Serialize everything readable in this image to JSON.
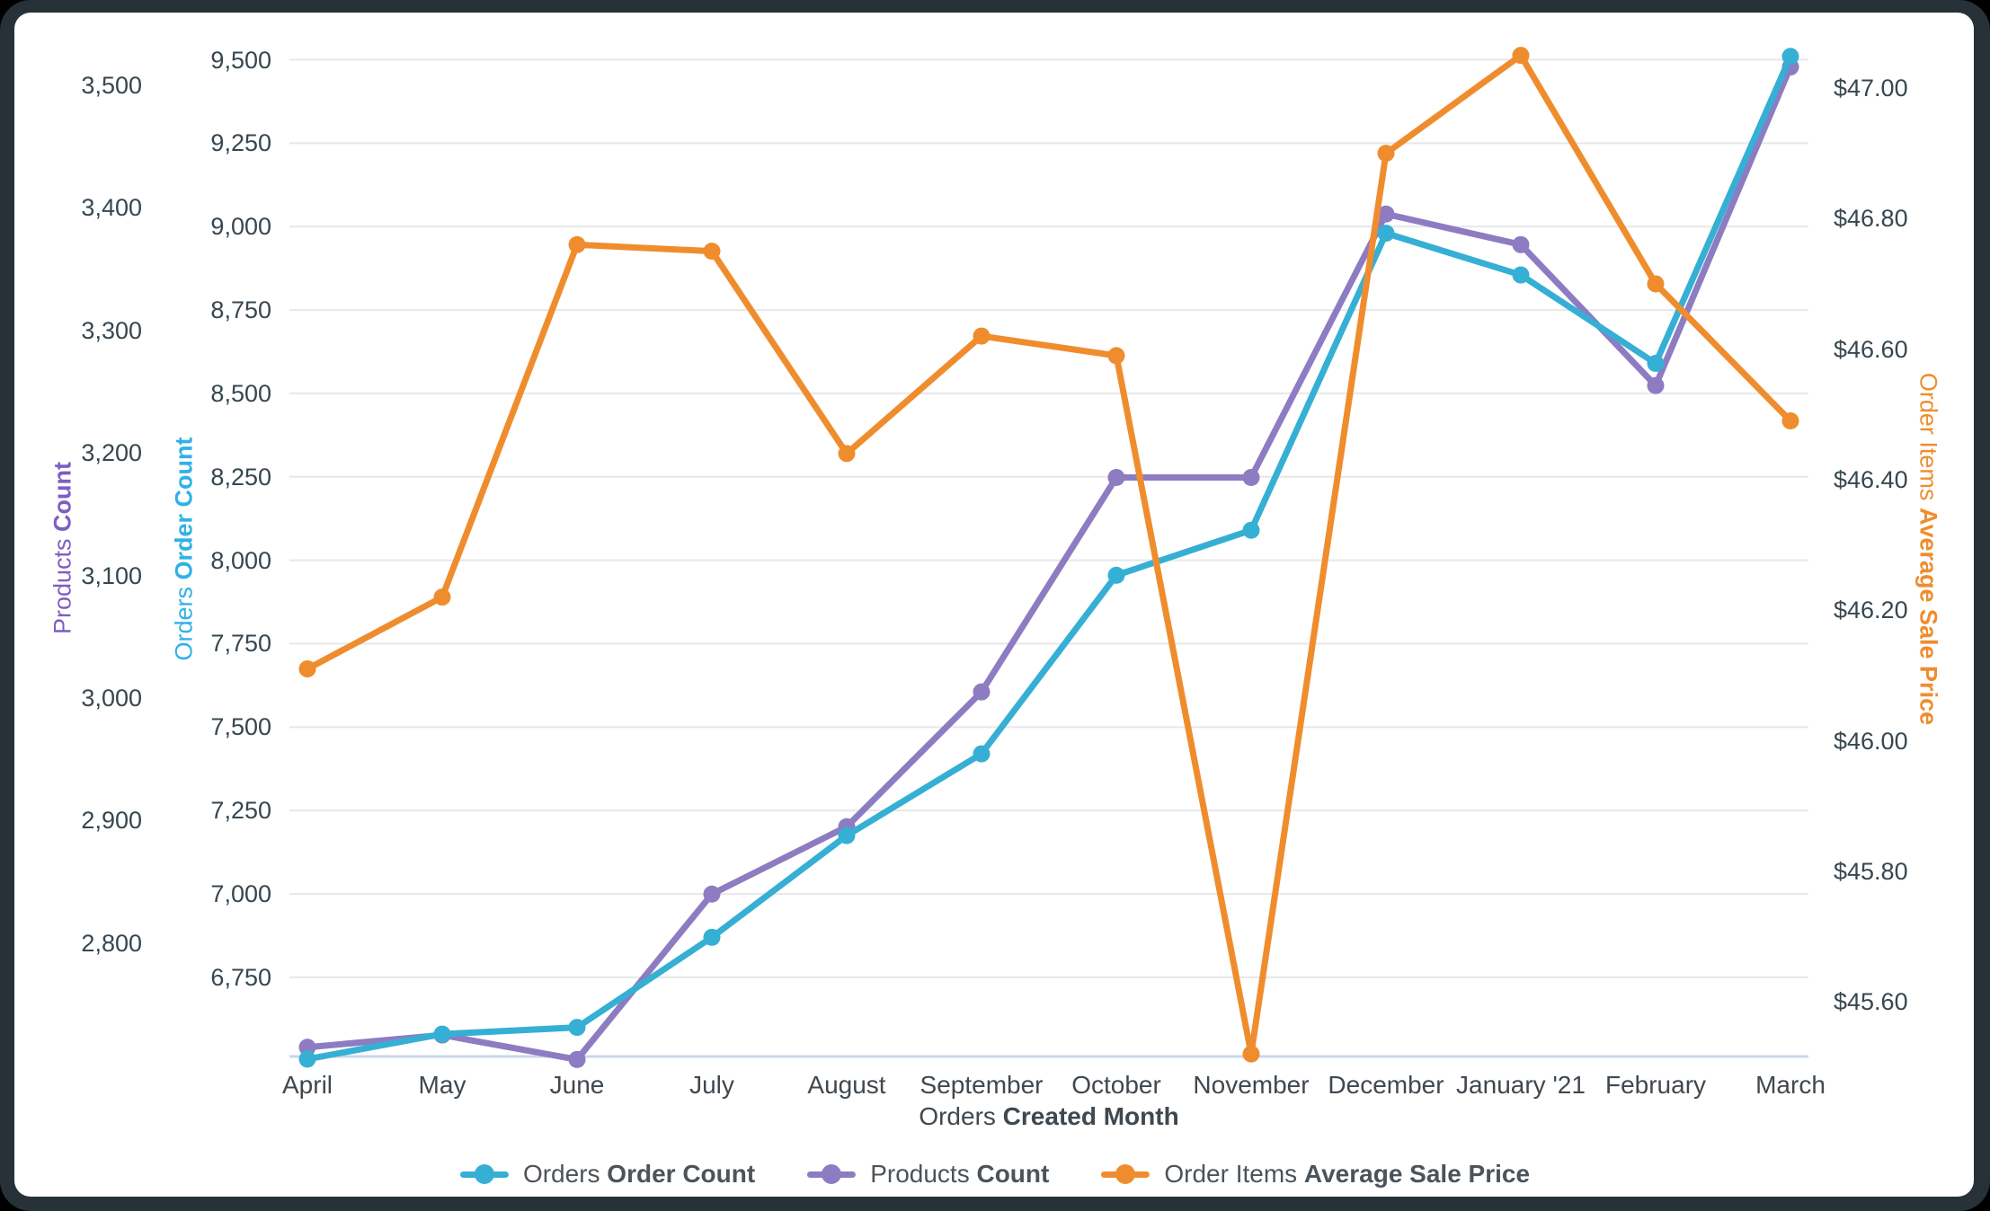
{
  "chart_data": {
    "type": "line",
    "categories": [
      "April",
      "May",
      "June",
      "July",
      "August",
      "September",
      "October",
      "November",
      "December",
      "January '21",
      "February",
      "March"
    ],
    "x_axis": {
      "title_view": "Orders",
      "title_field": "Created Month"
    },
    "axes": {
      "products": {
        "title_view": "Products",
        "title_field": "Count",
        "color": "#7C5EC5",
        "tick_labels": [
          "3,500",
          "3,400",
          "3,300",
          "3,200",
          "3,100",
          "3,000",
          "2,900",
          "2,800"
        ],
        "tick_values": [
          3500,
          3400,
          3300,
          3200,
          3100,
          3000,
          2900,
          2800
        ]
      },
      "orders": {
        "title_view": "Orders",
        "title_field": "Order Count",
        "color": "#2FB2E6",
        "tick_labels": [
          "9,500",
          "9,250",
          "9,000",
          "8,750",
          "8,500",
          "8,250",
          "8,000",
          "7,750",
          "7,500",
          "7,250",
          "7,000",
          "6,750"
        ],
        "tick_values": [
          9500,
          9250,
          9000,
          8750,
          8500,
          8250,
          8000,
          7750,
          7500,
          7250,
          7000,
          6750
        ]
      },
      "price": {
        "title_view": "Order Items",
        "title_field": "Average Sale Price",
        "color": "#EF8D2E",
        "tick_labels": [
          "$47.00",
          "$46.80",
          "$46.60",
          "$46.40",
          "$46.20",
          "$46.00",
          "$45.80",
          "$45.60"
        ],
        "tick_values": [
          47.0,
          46.8,
          46.6,
          46.4,
          46.2,
          46.0,
          45.8,
          45.6
        ]
      }
    },
    "series": [
      {
        "name_view": "Orders",
        "name_field": "Order Count",
        "axis": "orders",
        "color": "#36AFD5",
        "values": [
          6505,
          6580,
          6600,
          6870,
          7175,
          7420,
          7955,
          8090,
          8980,
          8855,
          8590,
          9510
        ]
      },
      {
        "name_view": "Products",
        "name_field": "Count",
        "axis": "products",
        "color": "#8D7CC2",
        "values": [
          2715,
          2725,
          2705,
          2840,
          2895,
          3005,
          3180,
          3180,
          3395,
          3370,
          3255,
          3515
        ]
      },
      {
        "name_view": "Order Items",
        "name_field": "Average Sale Price",
        "axis": "price",
        "color": "#EF8D2E",
        "values": [
          46.11,
          46.22,
          46.76,
          46.75,
          46.44,
          46.62,
          46.59,
          45.52,
          46.9,
          47.05,
          46.7,
          46.49
        ]
      }
    ],
    "grid": true,
    "legend_position": "bottom",
    "colors": {
      "gridline": "#E7E7E7",
      "x_axis_line": "#CBD6EA",
      "tick_text": "#37474F"
    }
  }
}
